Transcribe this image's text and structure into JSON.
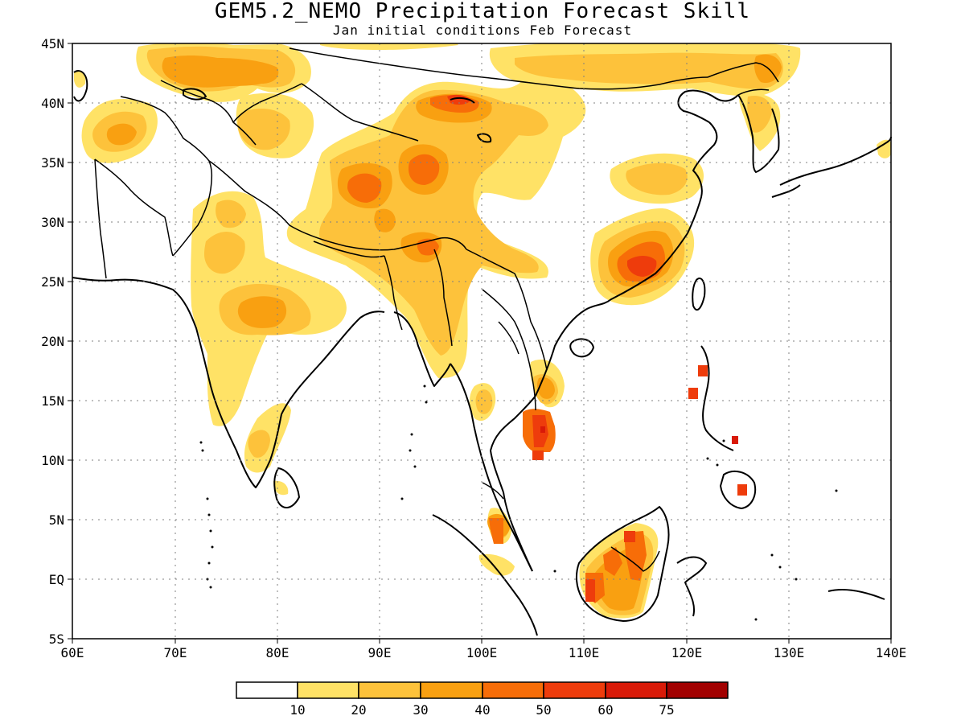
{
  "title": "GEM5.2_NEMO Precipitation Forecast Skill",
  "subtitle": "Jan initial conditions  Feb Forecast",
  "map": {
    "lon_range": [
      60,
      140
    ],
    "lat_range": [
      -5,
      45
    ],
    "lon_ticks": [
      "60E",
      "70E",
      "80E",
      "90E",
      "100E",
      "110E",
      "120E",
      "130E",
      "140E"
    ],
    "lat_ticks": [
      "45N",
      "40N",
      "35N",
      "30N",
      "25N",
      "20N",
      "15N",
      "10N",
      "5N",
      "EQ",
      "5S"
    ],
    "grid": "dotted"
  },
  "colorbar": {
    "labels": [
      "10",
      "20",
      "30",
      "40",
      "50",
      "60",
      "75"
    ],
    "colors": [
      "#ffffff",
      "#ffe266",
      "#fdc23b",
      "#f9a011",
      "#f76d08",
      "#ee3c0c",
      "#d91a08",
      "#a20000"
    ]
  },
  "chart_data": {
    "type": "heatmap",
    "title": "GEM5.2_NEMO Precipitation Forecast Skill",
    "subtitle": "Jan initial conditions  Feb Forecast",
    "x_range": [
      60,
      140
    ],
    "y_range": [
      -5,
      45
    ],
    "levels": [
      10,
      20,
      30,
      40,
      50,
      60,
      75
    ],
    "regions": [
      {
        "name": "",
        "lon": [
          61,
          76
        ],
        "lat": [
          33,
          39
        ],
        "level": 10
      },
      {
        "name": "",
        "lon": [
          71,
          78
        ],
        "lat": [
          39,
          45
        ],
        "level": 20
      },
      {
        "name": "",
        "lon": [
          84,
          102
        ],
        "lat": [
          28,
          38
        ],
        "level": 10
      },
      {
        "name": "",
        "lon": [
          86,
          92
        ],
        "lat": [
          31,
          35
        ],
        "level": 30
      },
      {
        "name": "",
        "lon": [
          93,
          100
        ],
        "lat": [
          31,
          36
        ],
        "level": 30
      },
      {
        "name": "",
        "lon": [
          95,
          102
        ],
        "lat": [
          39,
          41
        ],
        "level": 30
      },
      {
        "name": "",
        "lon": [
          89,
          95
        ],
        "lat": [
          41,
          45
        ],
        "level": 10
      },
      {
        "name": "",
        "lon": [
          103,
          135
        ],
        "lat": [
          40,
          45
        ],
        "level": 10
      },
      {
        "name": "",
        "lon": [
          125,
          131
        ],
        "lat": [
          38,
          44
        ],
        "level": 20
      },
      {
        "name": "",
        "lon": [
          76,
          88
        ],
        "lat": [
          18,
          27
        ],
        "level": 20
      },
      {
        "name": "",
        "lon": [
          77,
          80
        ],
        "lat": [
          20,
          23
        ],
        "level": 30
      },
      {
        "name": "",
        "lon": [
          107,
          117
        ],
        "lat": [
          22,
          31
        ],
        "level": 20
      },
      {
        "name": "",
        "lon": [
          112,
          118
        ],
        "lat": [
          24,
          28
        ],
        "level": 40
      },
      {
        "name": "",
        "lon": [
          91,
          99
        ],
        "lat": [
          15,
          28
        ],
        "level": 20
      },
      {
        "name": "",
        "lon": [
          103,
          108
        ],
        "lat": [
          10,
          15
        ],
        "level": 40
      },
      {
        "name": "",
        "lon": [
          110,
          118
        ],
        "lat": [
          -3,
          4
        ],
        "level": 20
      },
      {
        "name": "",
        "lon": [
          110,
          112
        ],
        "lat": [
          -1,
          1
        ],
        "level": 40
      },
      {
        "name": "",
        "lon": [
          120,
          122
        ],
        "lat": [
          15,
          18
        ],
        "level": 50
      },
      {
        "name": "",
        "lon": [
          125,
          126
        ],
        "lat": [
          7,
          8
        ],
        "level": 50
      }
    ]
  }
}
